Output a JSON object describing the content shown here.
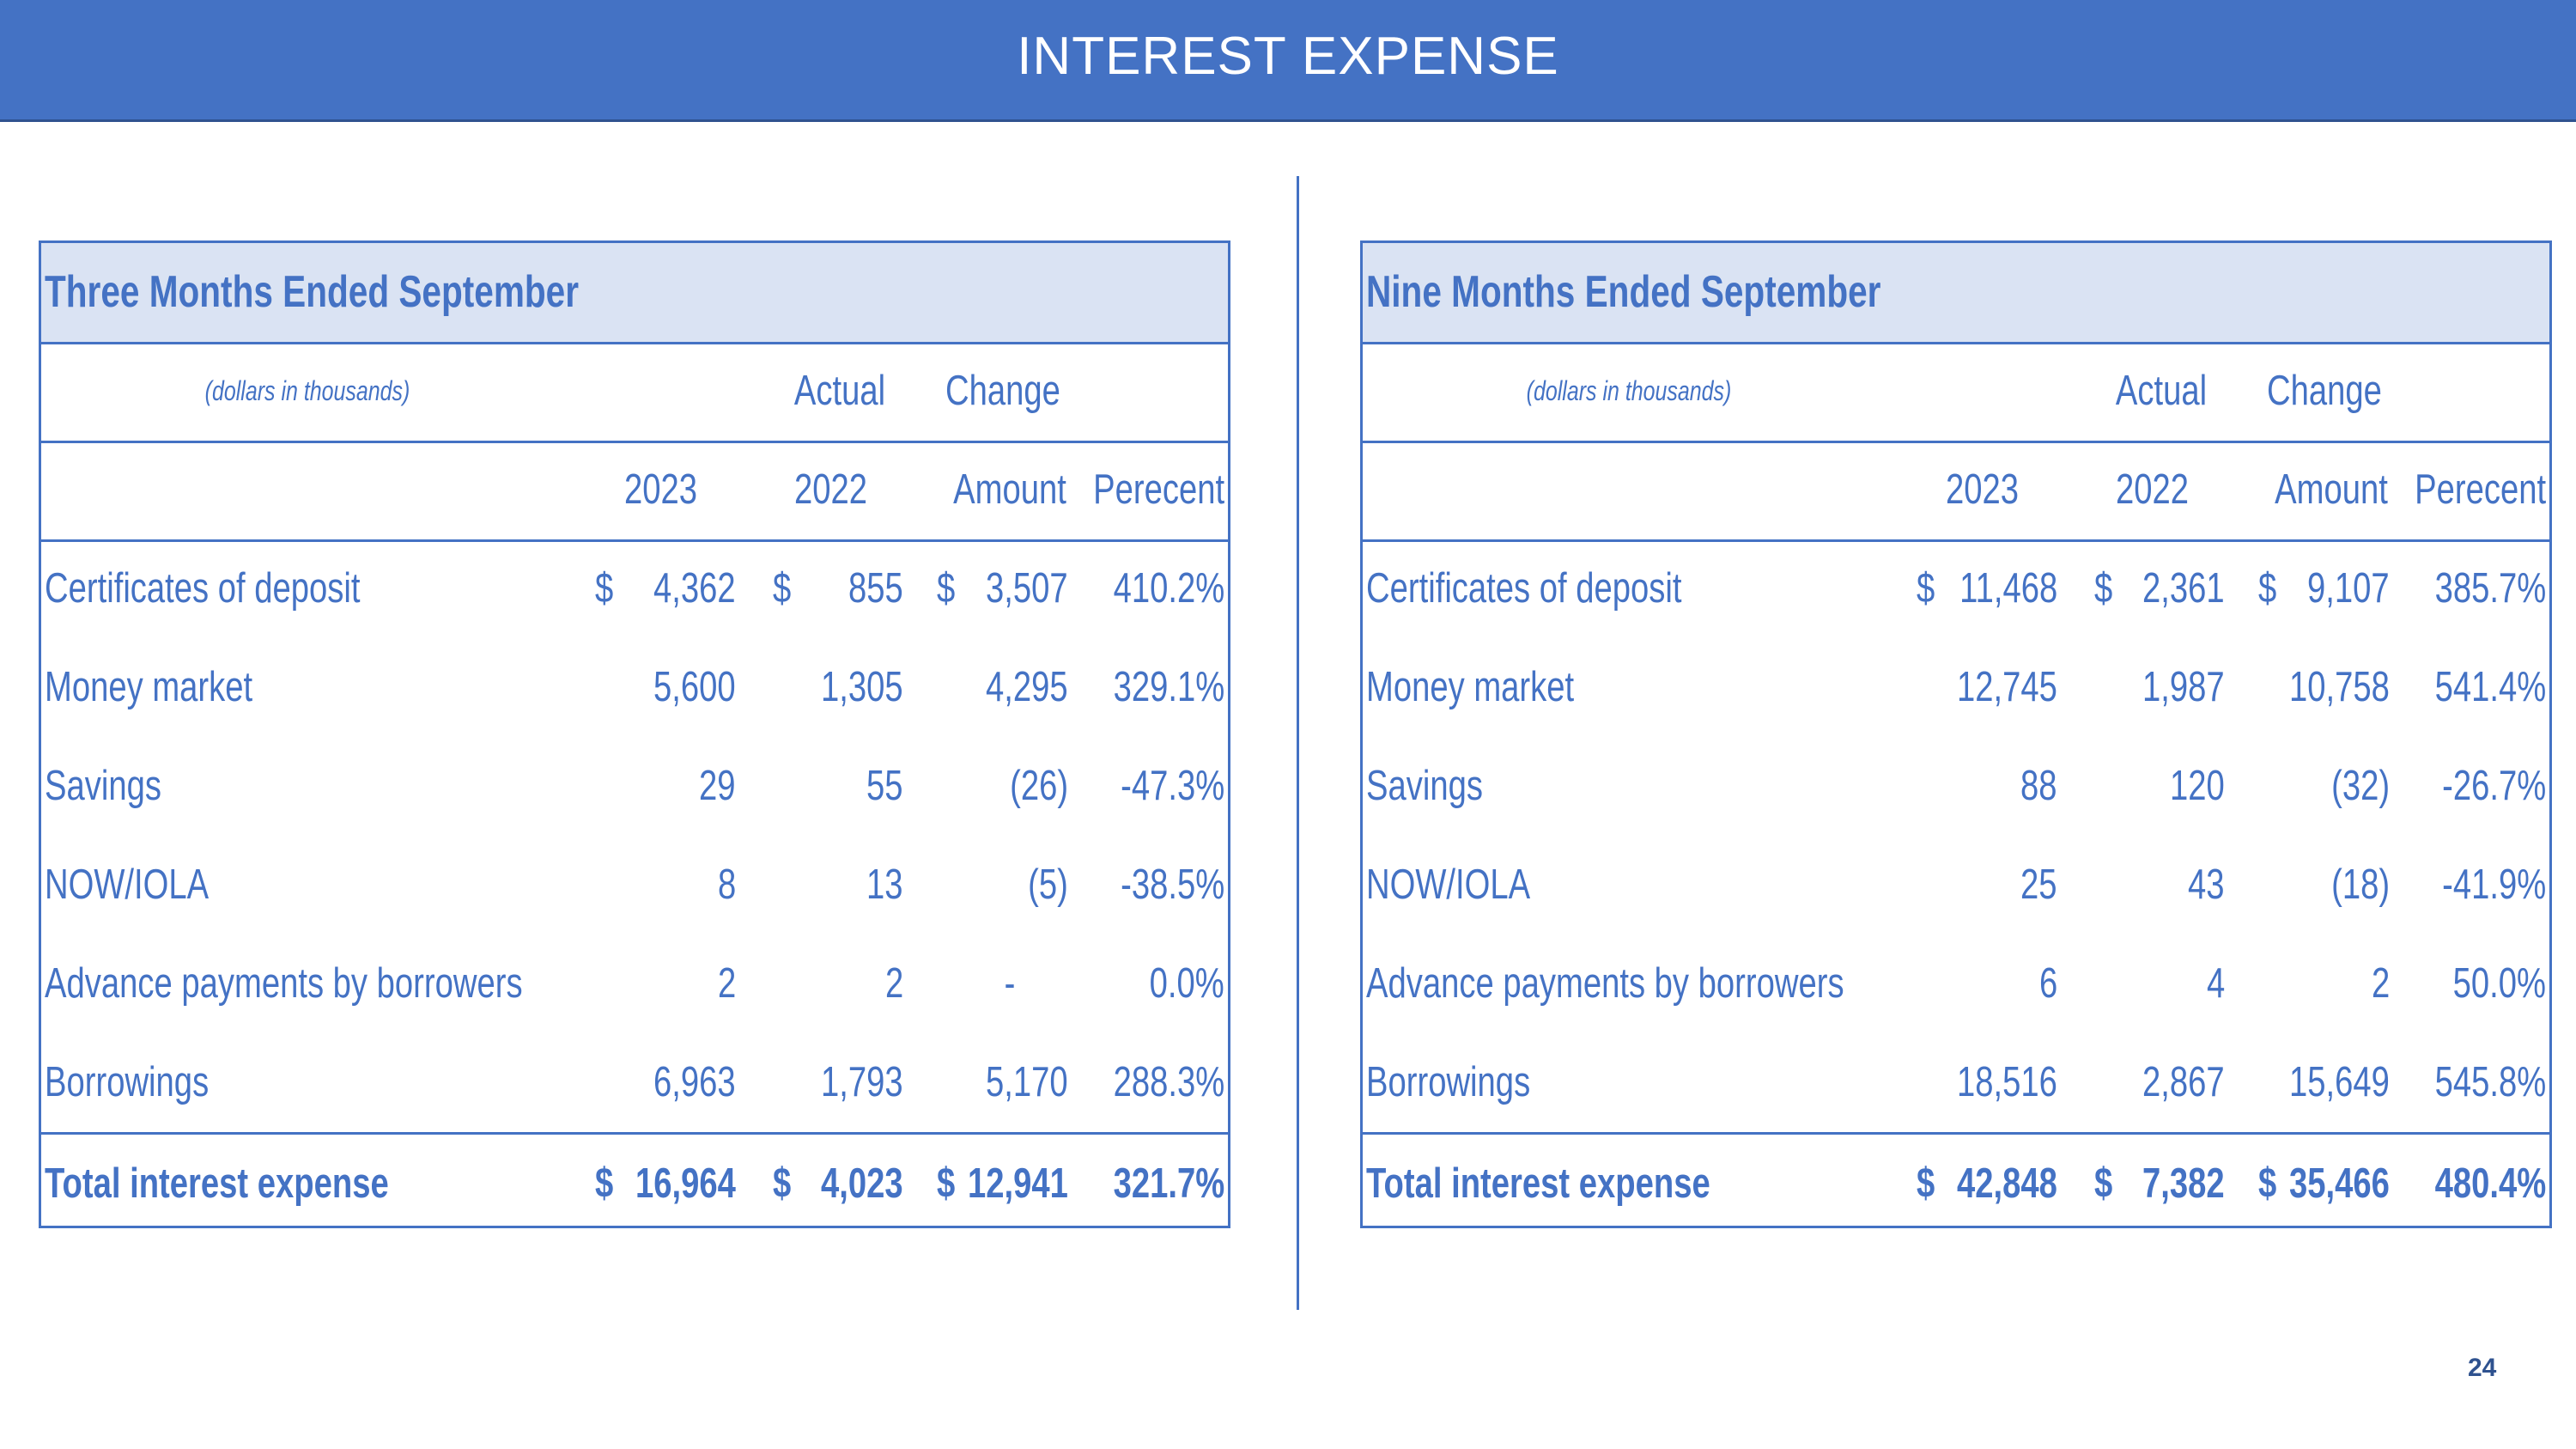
{
  "slide_title": "INTEREST EXPENSE",
  "page_number": "24",
  "colors": {
    "accent": "#4472c4",
    "title_fill": "#dae3f3",
    "text": "#4472c4"
  },
  "tables": [
    {
      "title": "Three Months Ended September",
      "units_note": "(dollars in thousands)",
      "group_actual": "Actual",
      "group_change": "Change",
      "col_2023": "2023",
      "col_2022": "2022",
      "col_amount": "Amount",
      "col_percent": "Perecent",
      "rows": [
        {
          "label": "Certificates of deposit",
          "d1": "$",
          "v2023": "4,362",
          "d2": "$",
          "v2022": "855",
          "d3": "$",
          "amount": "3,507",
          "percent": "410.2%"
        },
        {
          "label": "Money market",
          "d1": "",
          "v2023": "5,600",
          "d2": "",
          "v2022": "1,305",
          "d3": "",
          "amount": "4,295",
          "percent": "329.1%"
        },
        {
          "label": "Savings",
          "d1": "",
          "v2023": "29",
          "d2": "",
          "v2022": "55",
          "d3": "",
          "amount": "(26)",
          "percent": "-47.3%"
        },
        {
          "label": "NOW/IOLA",
          "d1": "",
          "v2023": "8",
          "d2": "",
          "v2022": "13",
          "d3": "",
          "amount": "(5)",
          "percent": "-38.5%"
        },
        {
          "label": "Advance payments by borrowers",
          "d1": "",
          "v2023": "2",
          "d2": "",
          "v2022": "2",
          "d3": "",
          "amount": "-",
          "percent": "0.0%"
        },
        {
          "label": "Borrowings",
          "d1": "",
          "v2023": "6,963",
          "d2": "",
          "v2022": "1,793",
          "d3": "",
          "amount": "5,170",
          "percent": "288.3%"
        }
      ],
      "total": {
        "label": "Total interest expense",
        "d1": "$",
        "v2023": "16,964",
        "d2": "$",
        "v2022": "4,023",
        "d3": "$",
        "amount": "12,941",
        "percent": "321.7%"
      }
    },
    {
      "title": "Nine Months Ended September",
      "units_note": "(dollars in thousands)",
      "group_actual": "Actual",
      "group_change": "Change",
      "col_2023": "2023",
      "col_2022": "2022",
      "col_amount": "Amount",
      "col_percent": "Perecent",
      "rows": [
        {
          "label": "Certificates of deposit",
          "d1": "$",
          "v2023": "11,468",
          "d2": "$",
          "v2022": "2,361",
          "d3": "$",
          "amount": "9,107",
          "percent": "385.7%"
        },
        {
          "label": "Money market",
          "d1": "",
          "v2023": "12,745",
          "d2": "",
          "v2022": "1,987",
          "d3": "",
          "amount": "10,758",
          "percent": "541.4%"
        },
        {
          "label": "Savings",
          "d1": "",
          "v2023": "88",
          "d2": "",
          "v2022": "120",
          "d3": "",
          "amount": "(32)",
          "percent": "-26.7%"
        },
        {
          "label": "NOW/IOLA",
          "d1": "",
          "v2023": "25",
          "d2": "",
          "v2022": "43",
          "d3": "",
          "amount": "(18)",
          "percent": "-41.9%"
        },
        {
          "label": "Advance payments by borrowers",
          "d1": "",
          "v2023": "6",
          "d2": "",
          "v2022": "4",
          "d3": "",
          "amount": "2",
          "percent": "50.0%"
        },
        {
          "label": "Borrowings",
          "d1": "",
          "v2023": "18,516",
          "d2": "",
          "v2022": "2,867",
          "d3": "",
          "amount": "15,649",
          "percent": "545.8%"
        }
      ],
      "total": {
        "label": "Total interest expense",
        "d1": "$",
        "v2023": "42,848",
        "d2": "$",
        "v2022": "7,382",
        "d3": "$",
        "amount": "35,466",
        "percent": "480.4%"
      }
    }
  ]
}
